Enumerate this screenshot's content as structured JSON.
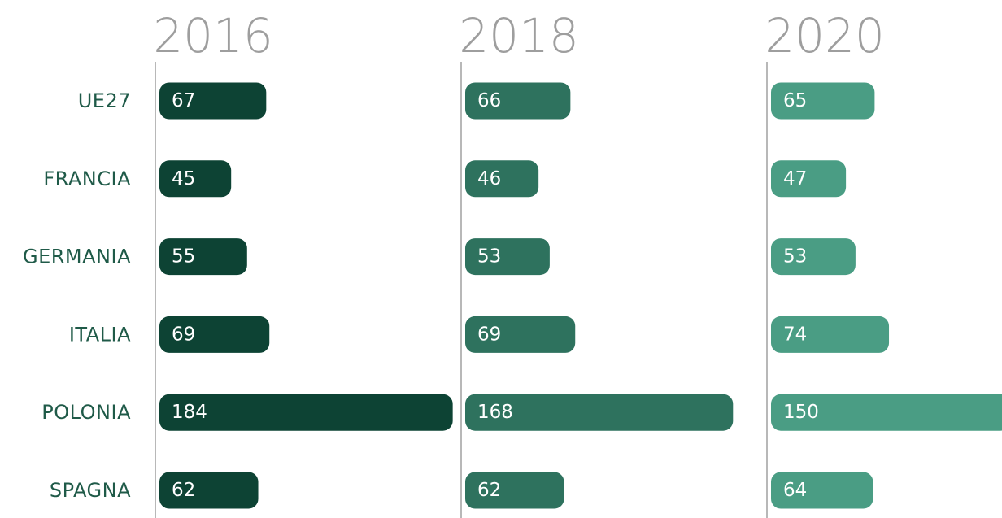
{
  "chart_data": {
    "type": "bar",
    "orientation": "horizontal",
    "categories": [
      "UE27",
      "FRANCIA",
      "GERMANIA",
      "ITALIA",
      "POLONIA",
      "SPAGNA"
    ],
    "series": [
      {
        "name": "2016",
        "color": "#0d4334",
        "values": [
          67,
          45,
          55,
          69,
          184,
          62
        ]
      },
      {
        "name": "2018",
        "color": "#2e725e",
        "values": [
          66,
          46,
          53,
          69,
          168,
          62
        ]
      },
      {
        "name": "2020",
        "color": "#4a9d84",
        "values": [
          65,
          47,
          53,
          74,
          150,
          64
        ]
      }
    ]
  }
}
